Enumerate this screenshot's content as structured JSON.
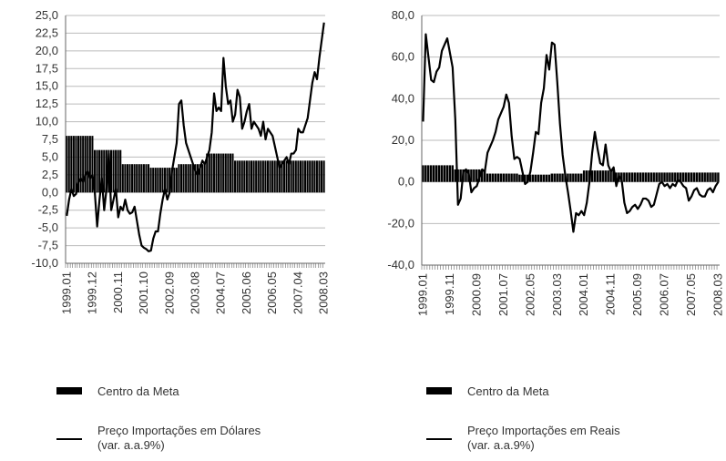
{
  "chart_data": [
    {
      "type": "combo",
      "categories": [
        "1999.01",
        null,
        null,
        null,
        null,
        null,
        null,
        null,
        null,
        null,
        null,
        "1999.12",
        null,
        null,
        null,
        null,
        null,
        null,
        null,
        null,
        null,
        null,
        "2000.11",
        null,
        null,
        null,
        null,
        null,
        null,
        null,
        null,
        null,
        null,
        "2001.10",
        null,
        null,
        null,
        null,
        null,
        null,
        null,
        null,
        null,
        null,
        "2002.09",
        null,
        null,
        null,
        null,
        null,
        null,
        null,
        null,
        null,
        null,
        "2003.08",
        null,
        null,
        null,
        null,
        null,
        null,
        null,
        null,
        null,
        null,
        "2004.07",
        null,
        null,
        null,
        null,
        null,
        null,
        null,
        null,
        null,
        null,
        "2005.06",
        null,
        null,
        null,
        null,
        null,
        null,
        null,
        null,
        null,
        null,
        "2006.05",
        null,
        null,
        null,
        null,
        null,
        null,
        null,
        null,
        null,
        null,
        "2007.04",
        null,
        null,
        null,
        null,
        null,
        null,
        null,
        null,
        null,
        null,
        "2008.03"
      ],
      "series": [
        {
          "name": "Centro da Meta",
          "type": "bar",
          "color": "#000000",
          "values": [
            8,
            8,
            8,
            8,
            8,
            8,
            8,
            8,
            8,
            8,
            8,
            8,
            6,
            6,
            6,
            6,
            6,
            6,
            6,
            6,
            6,
            6,
            6,
            6,
            4,
            4,
            4,
            4,
            4,
            4,
            4,
            4,
            4,
            4,
            4,
            4,
            3.5,
            3.5,
            3.5,
            3.5,
            3.5,
            3.5,
            3.5,
            3.5,
            3.5,
            3.5,
            3.5,
            3.5,
            4,
            4,
            4,
            4,
            4,
            4,
            4,
            4,
            4,
            4,
            4,
            4,
            5.5,
            5.5,
            5.5,
            5.5,
            5.5,
            5.5,
            5.5,
            5.5,
            5.5,
            5.5,
            5.5,
            5.5,
            4.5,
            4.5,
            4.5,
            4.5,
            4.5,
            4.5,
            4.5,
            4.5,
            4.5,
            4.5,
            4.5,
            4.5,
            4.5,
            4.5,
            4.5,
            4.5,
            4.5,
            4.5,
            4.5,
            4.5,
            4.5,
            4.5,
            4.5,
            4.5,
            4.5,
            4.5,
            4.5,
            4.5,
            4.5,
            4.5,
            4.5,
            4.5,
            4.5,
            4.5,
            4.5,
            4.5,
            4.5,
            4.5,
            4.5
          ]
        },
        {
          "name": "Preço Importações em Dólares\n(var. a.a.9%)",
          "type": "line",
          "color": "#000000",
          "values": [
            -3.3,
            -1.0,
            0.5,
            -0.5,
            -0.2,
            1.5,
            2.0,
            1.5,
            2.5,
            3.0,
            2.0,
            2.5,
            0.0,
            -4.8,
            -1.0,
            2.0,
            -2.5,
            0.5,
            5.5,
            -2.5,
            -1.0,
            0.5,
            -3.5,
            -2.0,
            -2.5,
            -1.0,
            -2.5,
            -3.0,
            -2.8,
            -2.0,
            -4.0,
            -6.0,
            -7.5,
            -7.8,
            -8.0,
            -8.3,
            -8.2,
            -6.5,
            -5.5,
            -5.5,
            -3.0,
            -1.0,
            0.5,
            -1.0,
            0.0,
            3.0,
            5.0,
            7.0,
            12.5,
            13.0,
            9.5,
            7.0,
            6.0,
            5.0,
            4.0,
            3.0,
            2.5,
            3.5,
            4.5,
            4.0,
            5.0,
            6.0,
            8.5,
            14.0,
            11.5,
            12.0,
            11.5,
            19.0,
            15.0,
            12.5,
            13.0,
            10.0,
            11.0,
            14.5,
            13.5,
            9.0,
            10.0,
            11.5,
            12.5,
            9.0,
            10.0,
            9.5,
            9.0,
            8.0,
            10.0,
            7.5,
            9.0,
            8.5,
            8.0,
            6.5,
            5.0,
            3.5,
            4.0,
            4.5,
            5.0,
            4.0,
            5.5,
            5.5,
            6.0,
            9.0,
            8.5,
            8.5,
            9.5,
            10.5,
            13.0,
            15.5,
            17.0,
            16.0,
            19.0,
            21.5,
            24.0
          ]
        }
      ],
      "ylim": [
        -10,
        25
      ],
      "yticks": [
        {
          "value": -10,
          "label": "-10,0"
        },
        {
          "value": -7.5,
          "label": "-7,5"
        },
        {
          "value": -5,
          "label": "-5,0"
        },
        {
          "value": -2.5,
          "label": "-2,5"
        },
        {
          "value": 0,
          "label": "0,0"
        },
        {
          "value": 2.5,
          "label": "2,5"
        },
        {
          "value": 5,
          "label": "5,0"
        },
        {
          "value": 7.5,
          "label": "7,5"
        },
        {
          "value": 10,
          "label": "10,0"
        },
        {
          "value": 12.5,
          "label": "12,5"
        },
        {
          "value": 15,
          "label": "15,0"
        },
        {
          "value": 17.5,
          "label": "17,5"
        },
        {
          "value": 20,
          "label": "20,0"
        },
        {
          "value": 22.5,
          "label": "22,5"
        },
        {
          "value": 25,
          "label": "25,0"
        }
      ],
      "grid": true
    },
    {
      "type": "combo",
      "categories": [
        "1999.01",
        null,
        null,
        null,
        null,
        null,
        null,
        null,
        null,
        null,
        "1999.11",
        null,
        null,
        null,
        null,
        null,
        null,
        null,
        null,
        null,
        "2000.09",
        null,
        null,
        null,
        null,
        null,
        null,
        null,
        null,
        null,
        "2001.07",
        null,
        null,
        null,
        null,
        null,
        null,
        null,
        null,
        null,
        "2002.05",
        null,
        null,
        null,
        null,
        null,
        null,
        null,
        null,
        null,
        "2003.03",
        null,
        null,
        null,
        null,
        null,
        null,
        null,
        null,
        null,
        "2004.01",
        null,
        null,
        null,
        null,
        null,
        null,
        null,
        null,
        null,
        "2004.11",
        null,
        null,
        null,
        null,
        null,
        null,
        null,
        null,
        null,
        "2005.09",
        null,
        null,
        null,
        null,
        null,
        null,
        null,
        null,
        null,
        "2006.07",
        null,
        null,
        null,
        null,
        null,
        null,
        null,
        null,
        null,
        "2007.05",
        null,
        null,
        null,
        null,
        null,
        null,
        null,
        null,
        null,
        "2008.03"
      ],
      "series": [
        {
          "name": "Centro da Meta",
          "type": "bar",
          "color": "#000000",
          "values": [
            8,
            8,
            8,
            8,
            8,
            8,
            8,
            8,
            8,
            8,
            8,
            8,
            6,
            6,
            6,
            6,
            6,
            6,
            6,
            6,
            6,
            6,
            6,
            6,
            4,
            4,
            4,
            4,
            4,
            4,
            4,
            4,
            4,
            4,
            4,
            4,
            3.5,
            3.5,
            3.5,
            3.5,
            3.5,
            3.5,
            3.5,
            3.5,
            3.5,
            3.5,
            3.5,
            3.5,
            4,
            4,
            4,
            4,
            4,
            4,
            4,
            4,
            4,
            4,
            4,
            4,
            5.5,
            5.5,
            5.5,
            5.5,
            5.5,
            5.5,
            5.5,
            5.5,
            5.5,
            5.5,
            5.5,
            5.5,
            4.5,
            4.5,
            4.5,
            4.5,
            4.5,
            4.5,
            4.5,
            4.5,
            4.5,
            4.5,
            4.5,
            4.5,
            4.5,
            4.5,
            4.5,
            4.5,
            4.5,
            4.5,
            4.5,
            4.5,
            4.5,
            4.5,
            4.5,
            4.5,
            4.5,
            4.5,
            4.5,
            4.5,
            4.5,
            4.5,
            4.5,
            4.5,
            4.5,
            4.5,
            4.5,
            4.5,
            4.5,
            4.5,
            4.5
          ]
        },
        {
          "name": "Preço Importações em Reais\n(var. a.a.9%)",
          "type": "line",
          "color": "#000000",
          "values": [
            29,
            71,
            60,
            49,
            48,
            53,
            55,
            63,
            66,
            69,
            62,
            55,
            30,
            -11,
            -8,
            5,
            6,
            4,
            -5,
            -3,
            -2,
            2,
            6,
            5,
            14,
            17,
            20,
            24,
            30,
            33,
            36,
            42,
            38,
            22,
            11,
            12,
            11,
            5,
            -1,
            0,
            5,
            14,
            24,
            23,
            38,
            45,
            61,
            54,
            67,
            66,
            48,
            28,
            13,
            3,
            -5,
            -14,
            -24,
            -15,
            -16,
            -14,
            -16,
            -10,
            0,
            14,
            24,
            16,
            9,
            8,
            18,
            8,
            5,
            7,
            -2,
            3,
            1,
            -10,
            -15,
            -14,
            -12,
            -11,
            -13,
            -11,
            -8,
            -8,
            -9,
            -12,
            -11,
            -6,
            -1,
            0,
            -2,
            -1,
            -3,
            -1,
            -2,
            1,
            0,
            -2,
            -3,
            -9,
            -7,
            -4,
            -3,
            -6,
            -7,
            -7,
            -4,
            -3,
            -5,
            -2,
            0
          ]
        }
      ],
      "ylim": [
        -40,
        80
      ],
      "yticks": [
        {
          "value": -40,
          "label": "-40,0"
        },
        {
          "value": -20,
          "label": "-20,0"
        },
        {
          "value": 0,
          "label": "0,0"
        },
        {
          "value": 20,
          "label": "20,0"
        },
        {
          "value": 40,
          "label": "40,0"
        },
        {
          "value": 60,
          "label": "60,0"
        },
        {
          "value": 80,
          "label": "80,0"
        }
      ],
      "grid": true
    }
  ]
}
